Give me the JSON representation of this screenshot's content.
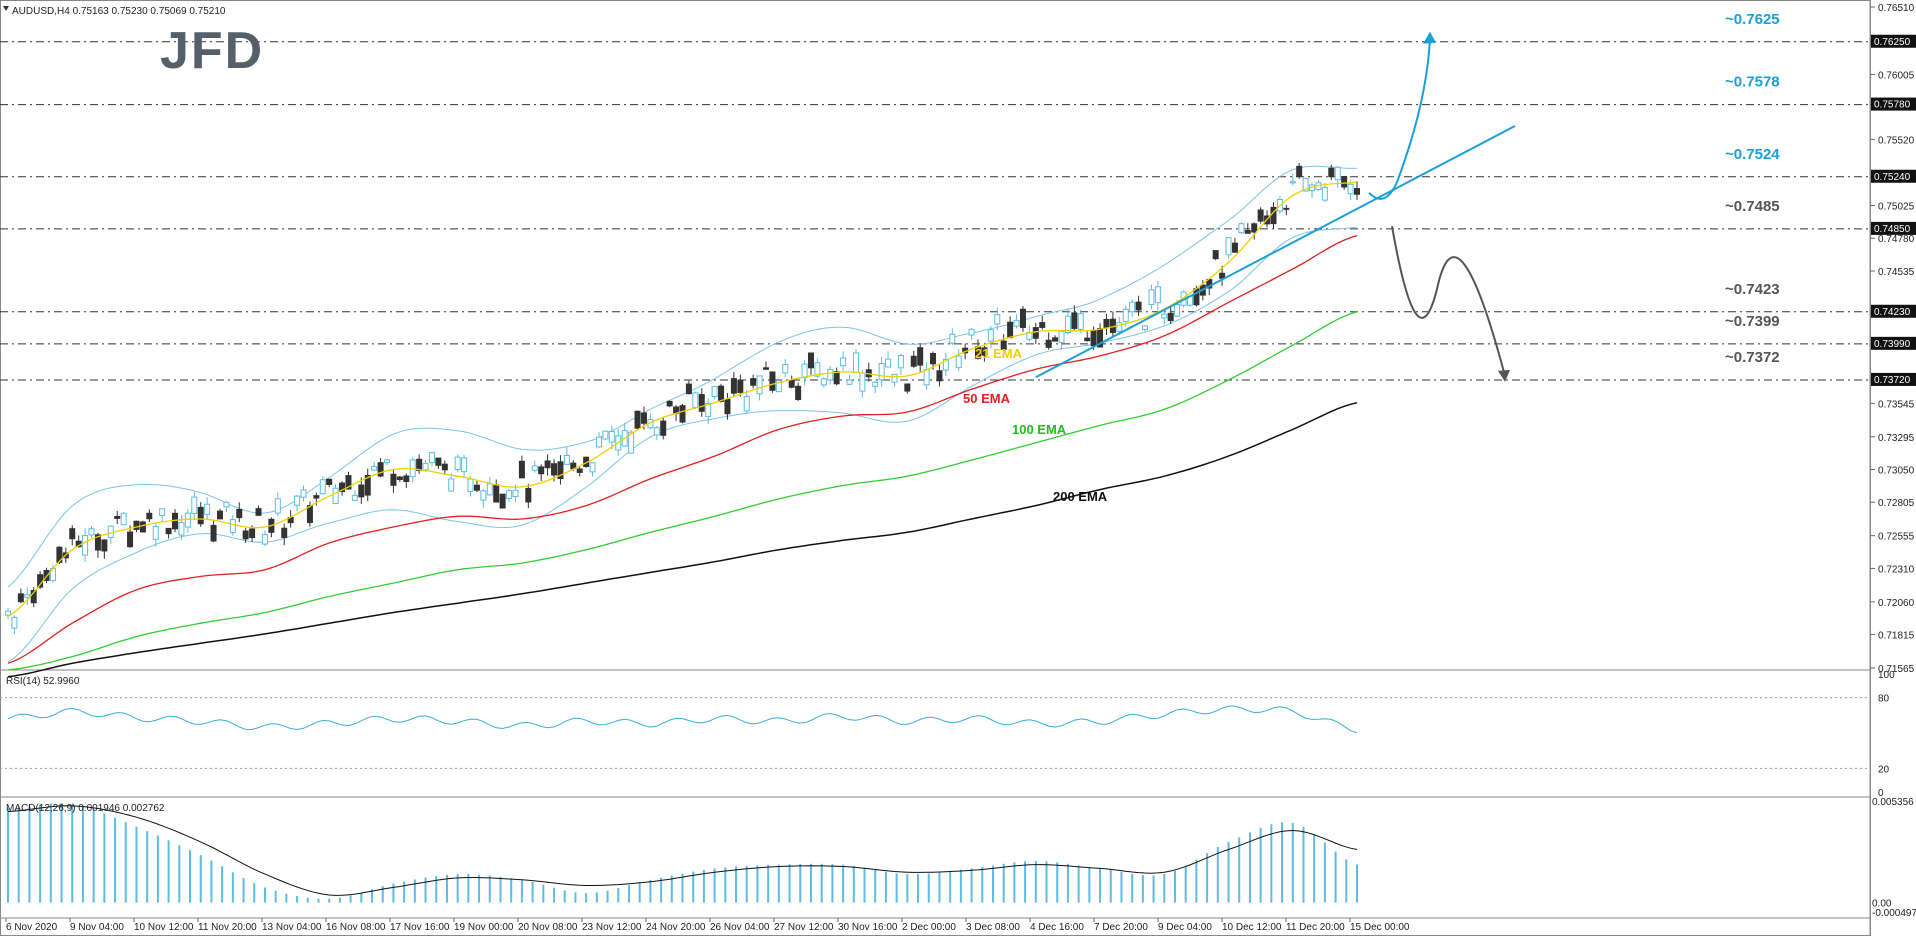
{
  "header": {
    "symbol_info": "AUDUSD,H4  0.75163 0.75230 0.75069 0.75210",
    "logo": "JFD"
  },
  "colors": {
    "bull": "#5bbce4",
    "bear": "#333333",
    "ema21": "#f0d000",
    "ema50": "#e02020",
    "ema100": "#33cc33",
    "ema200": "#111111",
    "bands": "#7cc4ea",
    "trendline": "#1a9fd6",
    "rsi": "#3aaed8",
    "macd_hist": "#5bbce4",
    "level_up": "#1a9fd6",
    "level_down": "#555555"
  },
  "chart_data": [
    {
      "type": "line",
      "title": "AUDUSD,H4  0.75163 0.75230 0.75069 0.75210",
      "ylim": [
        0.71565,
        0.7651
      ],
      "y_ticks": [
        "0.76510",
        "0.76250",
        "0.76005",
        "0.75780",
        "0.75520",
        "0.75240",
        "0.75025",
        "0.74850",
        "0.74780",
        "0.74535",
        "0.74230",
        "0.73990",
        "0.73720",
        "0.73545",
        "0.73295",
        "0.73050",
        "0.72805",
        "0.72555",
        "0.72310",
        "0.72060",
        "0.71815",
        "0.71565"
      ],
      "x_ticks": [
        "6 Nov 2020",
        "9 Nov 04:00",
        "10 Nov 12:00",
        "11 Nov 20:00",
        "13 Nov 04:00",
        "16 Nov 08:00",
        "17 Nov 16:00",
        "19 Nov 00:00",
        "20 Nov 08:00",
        "23 Nov 12:00",
        "24 Nov 20:00",
        "26 Nov 04:00",
        "27 Nov 12:00",
        "30 Nov 16:00",
        "2 Dec 00:00",
        "3 Dec 08:00",
        "4 Dec 16:00",
        "7 Dec 20:00",
        "9 Dec 04:00",
        "10 Dec 12:00",
        "11 Dec 20:00",
        "15 Dec 00:00"
      ],
      "levels": [
        {
          "label": "~0.7625",
          "value": 0.7625,
          "axis": "0.76250",
          "kind": "up"
        },
        {
          "label": "~0.7578",
          "value": 0.7578,
          "axis": "0.75780",
          "kind": "up"
        },
        {
          "label": "~0.7524",
          "value": 0.7524,
          "axis": "0.75240",
          "kind": "up"
        },
        {
          "label": "~0.7485",
          "value": 0.7485,
          "axis": "0.74850",
          "kind": "down"
        },
        {
          "label": "~0.7423",
          "value": 0.7423,
          "axis": "0.74230",
          "kind": "down"
        },
        {
          "label": "~0.7399",
          "value": 0.7399,
          "axis": "0.73990",
          "kind": "down"
        },
        {
          "label": "~0.7372",
          "value": 0.7372,
          "axis": "0.73720",
          "kind": "down"
        }
      ],
      "series": [
        {
          "name": "21 EMA",
          "values": [
            0.7195,
            0.7245,
            0.7262,
            0.7268,
            0.7262,
            0.7285,
            0.7305,
            0.73,
            0.7292,
            0.731,
            0.734,
            0.7355,
            0.737,
            0.7378,
            0.7375,
            0.7395,
            0.7408,
            0.741,
            0.7425,
            0.746,
            0.751,
            0.752
          ]
        },
        {
          "name": "50 EMA",
          "values": [
            0.716,
            0.719,
            0.7215,
            0.7225,
            0.723,
            0.725,
            0.7262,
            0.727,
            0.7268,
            0.7278,
            0.7298,
            0.7315,
            0.7335,
            0.7345,
            0.7348,
            0.7365,
            0.738,
            0.739,
            0.7405,
            0.743,
            0.7455,
            0.748
          ]
        },
        {
          "name": "100 EMA",
          "values": [
            0.7155,
            0.7165,
            0.718,
            0.719,
            0.7198,
            0.721,
            0.722,
            0.723,
            0.7235,
            0.7245,
            0.7258,
            0.727,
            0.7283,
            0.7293,
            0.73,
            0.7312,
            0.7325,
            0.7338,
            0.735,
            0.7372,
            0.7398,
            0.7423
          ]
        },
        {
          "name": "200 EMA",
          "values": [
            0.715,
            0.716,
            0.7168,
            0.7175,
            0.7182,
            0.719,
            0.7198,
            0.7205,
            0.7212,
            0.722,
            0.7228,
            0.7236,
            0.7245,
            0.7252,
            0.7258,
            0.7268,
            0.7278,
            0.729,
            0.73,
            0.7315,
            0.7335,
            0.7355
          ]
        }
      ]
    },
    {
      "type": "line",
      "title": "RSI(14) 52.9960",
      "ylim": [
        0,
        100
      ],
      "y_ticks": [
        "100",
        "80",
        "20",
        "0"
      ],
      "series": [
        {
          "name": "RSI(14)",
          "values": [
            62,
            68,
            63,
            60,
            55,
            58,
            62,
            60,
            56,
            60,
            58,
            62,
            60,
            64,
            60,
            62,
            58,
            60,
            66,
            70,
            68,
            53
          ]
        }
      ]
    },
    {
      "type": "bar",
      "title": "MACD(12,26,9) 0.001946 0.002762",
      "ylim": [
        -0.000497,
        0.005356
      ],
      "y_ticks": [
        "0.005356",
        "0.00",
        "-0.000497"
      ],
      "series": [
        {
          "name": "MACD",
          "values": [
            0.005,
            0.0052,
            0.004,
            0.0025,
            0.0008,
            0.0002,
            0.001,
            0.0015,
            0.0012,
            0.0005,
            0.0012,
            0.0018,
            0.002,
            0.002,
            0.0015,
            0.0018,
            0.0022,
            0.0018,
            0.0015,
            0.0032,
            0.0042,
            0.002
          ]
        },
        {
          "name": "Signal",
          "values": [
            0.0048,
            0.0051,
            0.0045,
            0.0032,
            0.0015,
            0.0004,
            0.0008,
            0.0013,
            0.0012,
            0.0009,
            0.0011,
            0.0016,
            0.0019,
            0.0019,
            0.0016,
            0.0017,
            0.002,
            0.0018,
            0.0016,
            0.0028,
            0.0038,
            0.0028
          ]
        }
      ]
    }
  ],
  "annotations": {
    "ema_labels": [
      "21 EMA",
      "50 EMA",
      "100 EMA",
      "200 EMA"
    ],
    "rsi_title": "RSI(14) 52.9960",
    "macd_title": "MACD(12,26,9) 0.001946 0.002762",
    "price_box_label": "0.75240"
  }
}
